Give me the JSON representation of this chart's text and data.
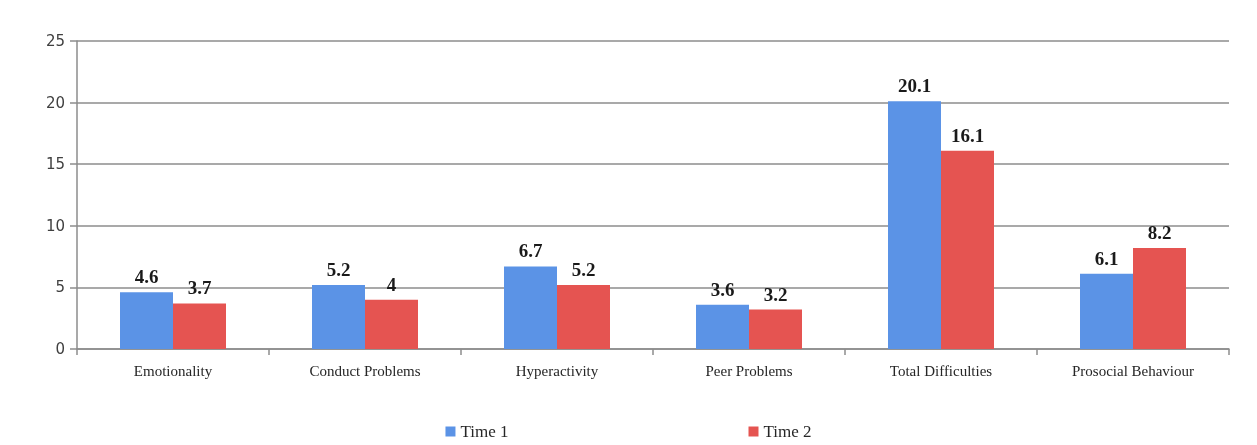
{
  "chart_data": {
    "type": "bar",
    "categories": [
      "Emotionality",
      "Conduct Problems",
      "Hyperactivity",
      "Peer Problems",
      "Total Difficulties",
      "Prosocial Behaviour"
    ],
    "series": [
      {
        "name": "Time 1",
        "color": "#5b93e6",
        "values": [
          4.6,
          5.2,
          6.7,
          3.6,
          20.1,
          6.1
        ]
      },
      {
        "name": "Time 2",
        "color": "#e55451",
        "values": [
          3.7,
          4,
          5.2,
          3.2,
          16.1,
          8.2
        ]
      }
    ],
    "ylim": [
      0,
      25
    ],
    "yticks": [
      0,
      5,
      10,
      15,
      20,
      25
    ],
    "grid": "y",
    "legend": "bottom",
    "data_labels": true
  }
}
